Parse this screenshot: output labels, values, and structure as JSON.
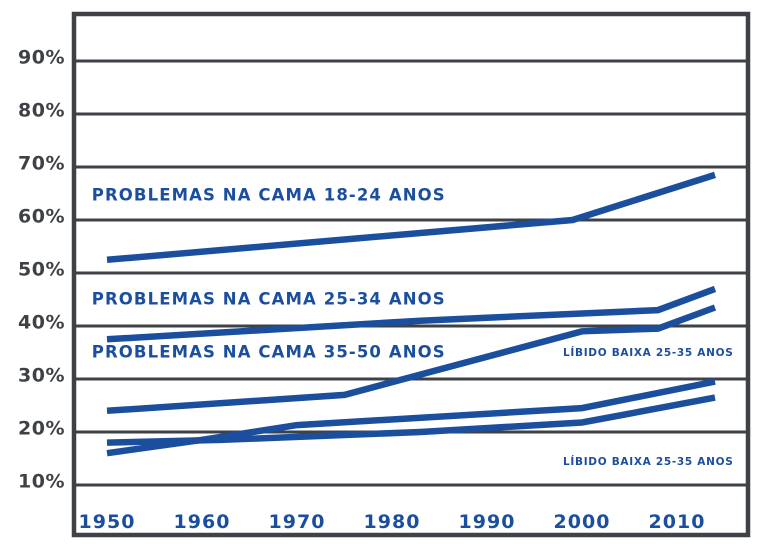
{
  "colors": {
    "line": "#1B4F9E",
    "grid": "#3E4247",
    "x_label": "#1B4F9E",
    "y_label": "#3E4247",
    "background": "#FFFFFF"
  },
  "chart_data": {
    "type": "line",
    "title": "",
    "xlabel": "",
    "ylabel": "",
    "x_tick_labels": [
      "1950",
      "1960",
      "1970",
      "1980",
      "1990",
      "2000",
      "2010"
    ],
    "y_tick_labels": [
      "90%",
      "80%",
      "70%",
      "60%",
      "50%",
      "40%",
      "30%",
      "20%",
      "10%"
    ],
    "x_range": [
      1950,
      2014
    ],
    "y_range": [
      0,
      100
    ],
    "grid": true,
    "legend_position": "none",
    "series": [
      {
        "id": "problemas-na-cama-18-24",
        "label": "PROBLEMAS NA CAMA 18-24 ANOS",
        "points": [
          [
            1950,
            52.5
          ],
          [
            1999,
            60
          ],
          [
            2014,
            68.5
          ]
        ]
      },
      {
        "id": "problemas-na-cama-25-34",
        "label": "PROBLEMAS NA CAMA 25-34 ANOS",
        "points": [
          [
            1950,
            37.5
          ],
          [
            1983,
            41
          ],
          [
            2008,
            43
          ],
          [
            2014,
            47
          ]
        ]
      },
      {
        "id": "problemas-na-cama-35-50",
        "label": "PROBLEMAS NA CAMA 35-50 ANOS",
        "points": [
          [
            1950,
            24
          ],
          [
            1975,
            27
          ],
          [
            2000,
            39
          ],
          [
            2008,
            39.5
          ],
          [
            2014,
            43.5
          ]
        ]
      },
      {
        "id": "libido-baixa-upper",
        "label": "LÍBIDO BAIXA 25-35 ANOS",
        "points": [
          [
            1950,
            16
          ],
          [
            1960,
            18.5
          ],
          [
            1970,
            21.3
          ],
          [
            2000,
            24.5
          ],
          [
            2014,
            29.5
          ]
        ]
      },
      {
        "id": "libido-baixa-lower",
        "label": "LÍBIDO BAIXA 25-35 ANOS",
        "points": [
          [
            1950,
            18
          ],
          [
            1962,
            18.5
          ],
          [
            1983,
            20
          ],
          [
            2000,
            21.8
          ],
          [
            2014,
            26.5
          ]
        ]
      }
    ],
    "annotations": [
      {
        "text": "PROBLEMAS NA CAMA 18-24 ANOS",
        "x": 1948.4,
        "y": 64.5,
        "size": "lg"
      },
      {
        "text": "PROBLEMAS NA CAMA 25-34 ANOS",
        "x": 1948.4,
        "y": 44.9,
        "size": "lg"
      },
      {
        "text": "PROBLEMAS NA CAMA 35-50 ANOS",
        "x": 1948.4,
        "y": 34.9,
        "size": "lg"
      },
      {
        "text": "LÍBIDO BAIXA 25-35 ANOS",
        "x": 1998,
        "y": 34.9,
        "size": "sm"
      },
      {
        "text": "LÍBIDO BAIXA 25-35 ANOS",
        "x": 1998,
        "y": 14.3,
        "size": "sm"
      }
    ]
  }
}
